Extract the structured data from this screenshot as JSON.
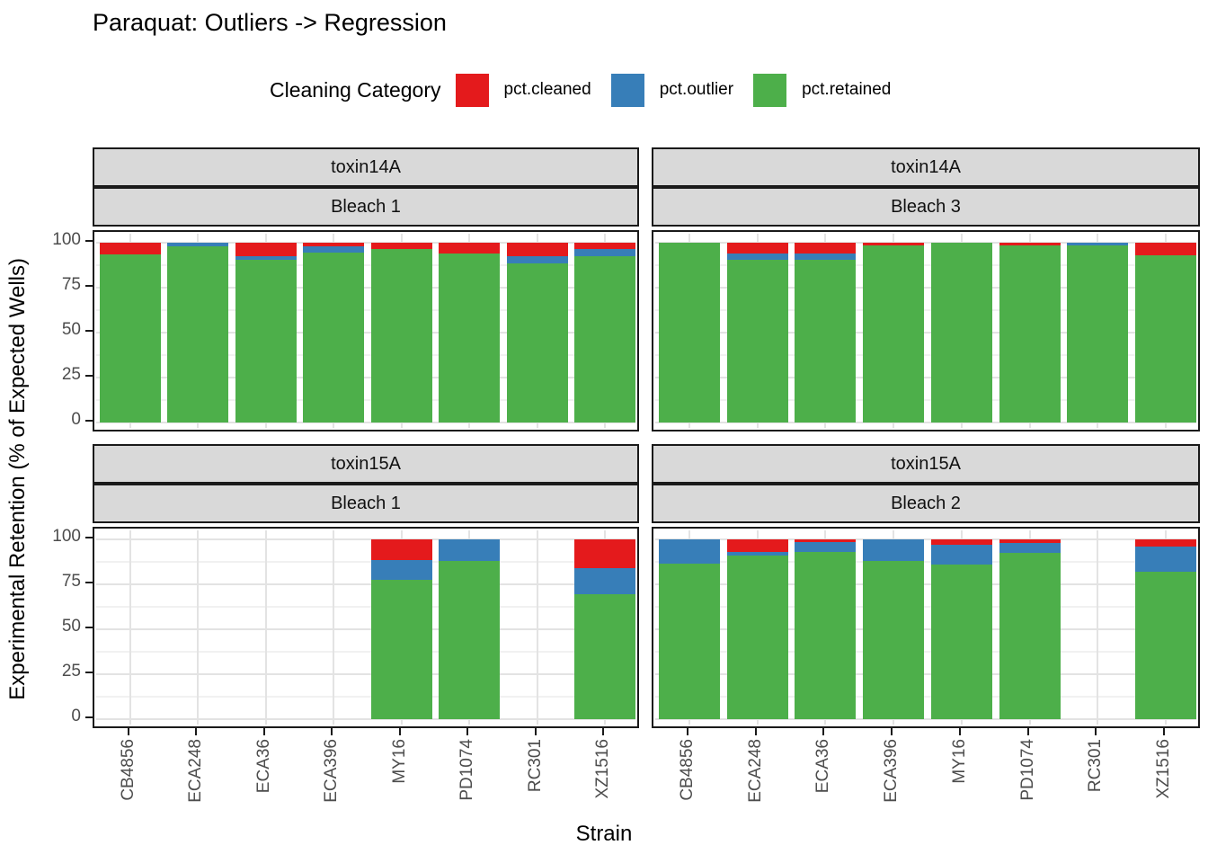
{
  "title": "Paraquat: Outliers -> Regression",
  "legend": {
    "title": "Cleaning Category",
    "items": [
      {
        "label": "pct.cleaned",
        "color": "#E41A1C"
      },
      {
        "label": "pct.outlier",
        "color": "#377EB8"
      },
      {
        "label": "pct.retained",
        "color": "#4DAF4A"
      }
    ]
  },
  "axes": {
    "x_title": "Strain",
    "y_title": "Experimental Retention (% of Expected Wells)",
    "y_ticks": [
      "100",
      "75",
      "50",
      "25",
      "0"
    ]
  },
  "chart_data": {
    "type": "bar",
    "stacked": true,
    "stack_order": [
      "pct.retained",
      "pct.outlier",
      "pct.cleaned"
    ],
    "categories": [
      "CB4856",
      "ECA248",
      "ECA36",
      "ECA396",
      "MY16",
      "PD1074",
      "RC301",
      "XZ1516"
    ],
    "ylim": [
      0,
      100
    ],
    "y_major_gridlines": [
      0,
      25,
      50,
      75,
      100
    ],
    "y_minor_gridlines": [
      12.5,
      37.5,
      62.5,
      87.5
    ],
    "legend_position": "top",
    "facets": [
      {
        "row_label": "toxin14A",
        "col_label": "Bleach 1",
        "series": [
          {
            "name": "pct.retained",
            "values": [
              93.5,
              98,
              90.5,
              94.5,
              96.5,
              94,
              88.5,
              92.5
            ]
          },
          {
            "name": "pct.outlier",
            "values": [
              0,
              2,
              2,
              3.5,
              0,
              0,
              4,
              4
            ]
          },
          {
            "name": "pct.cleaned",
            "values": [
              6.5,
              0,
              7.5,
              2,
              3.5,
              6,
              7.5,
              3.5
            ]
          }
        ]
      },
      {
        "row_label": "toxin14A",
        "col_label": "Bleach 3",
        "series": [
          {
            "name": "pct.retained",
            "values": [
              100,
              90.5,
              90.5,
              98.5,
              100,
              98.5,
              98.5,
              93
            ]
          },
          {
            "name": "pct.outlier",
            "values": [
              0,
              3.5,
              3.5,
              0,
              0,
              0,
              1.5,
              0
            ]
          },
          {
            "name": "pct.cleaned",
            "values": [
              0,
              6,
              6,
              1.5,
              0,
              1.5,
              0,
              7
            ]
          }
        ]
      },
      {
        "row_label": "toxin15A",
        "col_label": "Bleach 1",
        "series": [
          {
            "name": "pct.retained",
            "values": [
              null,
              null,
              null,
              null,
              77.5,
              88,
              null,
              69.5
            ]
          },
          {
            "name": "pct.outlier",
            "values": [
              null,
              null,
              null,
              null,
              11,
              12,
              null,
              14.5
            ]
          },
          {
            "name": "pct.cleaned",
            "values": [
              null,
              null,
              null,
              null,
              11.5,
              0,
              null,
              16
            ]
          }
        ]
      },
      {
        "row_label": "toxin15A",
        "col_label": "Bleach 2",
        "series": [
          {
            "name": "pct.retained",
            "values": [
              86.5,
              91,
              93,
              88,
              86,
              92.5,
              null,
              82
            ]
          },
          {
            "name": "pct.outlier",
            "values": [
              13.5,
              2,
              5.5,
              12,
              11,
              5.5,
              null,
              14
            ]
          },
          {
            "name": "pct.cleaned",
            "values": [
              0,
              7,
              1.5,
              0,
              3,
              2,
              null,
              4
            ]
          }
        ]
      }
    ]
  }
}
